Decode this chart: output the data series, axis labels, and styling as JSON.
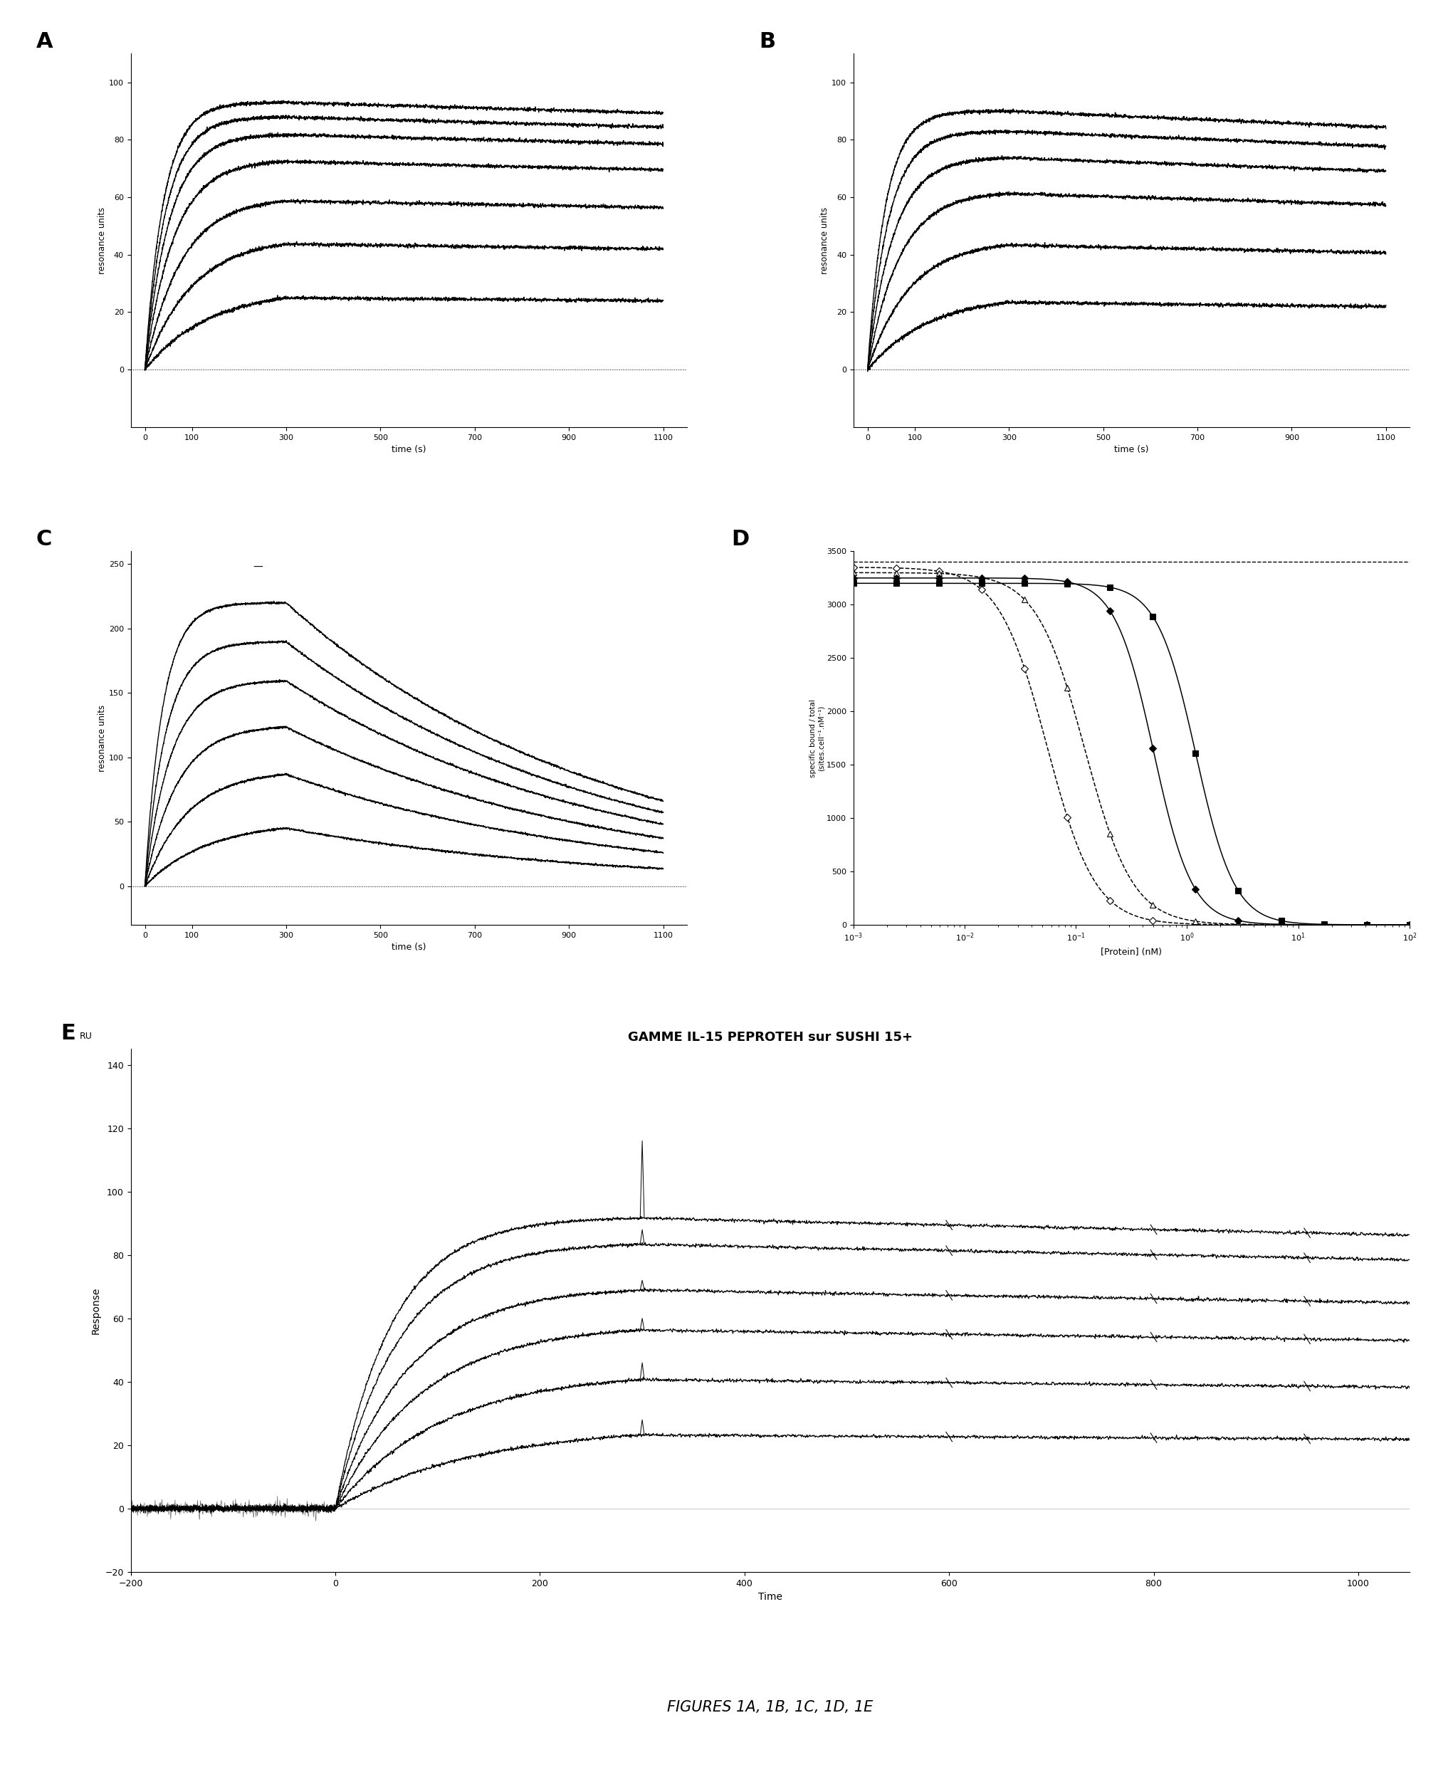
{
  "panel_A": {
    "label": "A",
    "ylabel": "resonance units",
    "xlabel": "time (s)",
    "xlim": [
      -30,
      1150
    ],
    "ylim": [
      -20,
      110
    ],
    "yticks": [
      0,
      20,
      40,
      60,
      80,
      100
    ],
    "xticks": [
      0,
      100,
      300,
      500,
      700,
      900,
      1100
    ],
    "curves": [
      {
        "plateau": 93,
        "tau": 40
      },
      {
        "plateau": 88,
        "tau": 45
      },
      {
        "plateau": 82,
        "tau": 52
      },
      {
        "plateau": 73,
        "tau": 62
      },
      {
        "plateau": 60,
        "tau": 78
      },
      {
        "plateau": 46,
        "tau": 100
      },
      {
        "plateau": 28,
        "tau": 135
      }
    ],
    "kd": 5e-05
  },
  "panel_B": {
    "label": "B",
    "ylabel": "resonance units",
    "xlabel": "time (s)",
    "xlim": [
      -30,
      1150
    ],
    "ylim": [
      -20,
      110
    ],
    "yticks": [
      0,
      20,
      40,
      60,
      80,
      100
    ],
    "xticks": [
      0,
      100,
      300,
      500,
      700,
      900,
      1100
    ],
    "curves": [
      {
        "plateau": 90,
        "tau": 38
      },
      {
        "plateau": 83,
        "tau": 45
      },
      {
        "plateau": 74,
        "tau": 55
      },
      {
        "plateau": 62,
        "tau": 68
      },
      {
        "plateau": 45,
        "tau": 90
      },
      {
        "plateau": 26,
        "tau": 130
      }
    ],
    "kd": 8e-05
  },
  "panel_C": {
    "label": "C",
    "ylabel": "resonance units",
    "xlabel": "time (s)",
    "xlim": [
      -30,
      1150
    ],
    "ylim": [
      -30,
      260
    ],
    "yticks": [
      0,
      50,
      100,
      150,
      200,
      250
    ],
    "xticks": [
      0,
      100,
      300,
      500,
      700,
      900,
      1100
    ],
    "curves": [
      {
        "plateau": 220,
        "tau": 38,
        "kd": 0.0015
      },
      {
        "plateau": 190,
        "tau": 45,
        "kd": 0.0015
      },
      {
        "plateau": 160,
        "tau": 55,
        "kd": 0.0015
      },
      {
        "plateau": 125,
        "tau": 68,
        "kd": 0.0015
      },
      {
        "plateau": 90,
        "tau": 90,
        "kd": 0.0015
      },
      {
        "plateau": 50,
        "tau": 130,
        "kd": 0.0015
      }
    ]
  },
  "panel_D": {
    "label": "D",
    "ylabel": "specific bound / total\n(sites.cell⁻¹.nM⁻¹)",
    "xlabel": "[Protein] (nM)",
    "ylim": [
      0,
      3500
    ],
    "yticks": [
      0,
      500,
      1000,
      1500,
      2000,
      2500,
      3000,
      3500
    ],
    "dashed_line_y": 3400,
    "curves": [
      {
        "ymax": 3350,
        "ec50": 0.055,
        "hill": 2.0,
        "ls": "--",
        "marker": "D",
        "filled": false
      },
      {
        "ymax": 3300,
        "ec50": 0.12,
        "hill": 2.0,
        "ls": "--",
        "marker": "^",
        "filled": false
      },
      {
        "ymax": 3250,
        "ec50": 0.5,
        "hill": 2.5,
        "ls": "-",
        "marker": "D",
        "filled": true
      },
      {
        "ymax": 3200,
        "ec50": 1.2,
        "hill": 2.5,
        "ls": "-",
        "marker": "s",
        "filled": true
      }
    ]
  },
  "panel_E": {
    "label": "E",
    "title": "GAMME IL-15 PEPROTEH sur SUSHI 15+",
    "ylabel": "Response",
    "xlabel": "Time",
    "ru_label": "RU",
    "xlim": [
      -200,
      1050
    ],
    "ylim": [
      -20,
      145
    ],
    "yticks": [
      -20,
      0,
      20,
      40,
      60,
      80,
      100,
      120,
      140
    ],
    "xticks": [
      -200,
      0,
      200,
      400,
      600,
      800,
      1000
    ],
    "curves": [
      {
        "plateau": 92,
        "tau": 55,
        "kd": 8e-05,
        "spike": 116
      },
      {
        "plateau": 84,
        "tau": 62,
        "kd": 8e-05,
        "spike": 88
      },
      {
        "plateau": 70,
        "tau": 72,
        "kd": 8e-05,
        "spike": 72
      },
      {
        "plateau": 58,
        "tau": 85,
        "kd": 8e-05,
        "spike": 60
      },
      {
        "plateau": 43,
        "tau": 103,
        "kd": 8e-05,
        "spike": 46
      },
      {
        "plateau": 26,
        "tau": 135,
        "kd": 8e-05,
        "spike": 28
      }
    ]
  },
  "figure_label": "FIGURES 1A, 1B, 1C, 1D, 1E",
  "bg_color": "#ffffff"
}
